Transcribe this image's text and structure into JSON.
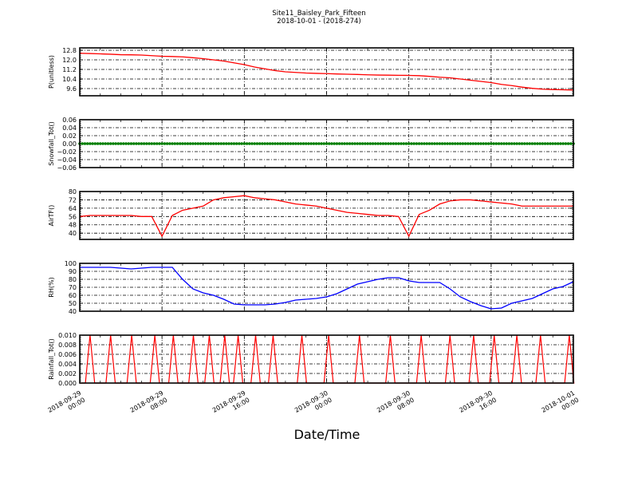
{
  "chart_data": [
    {
      "type": "line",
      "title": "Site11_Baisley_Park_Fifteen",
      "subtitle": "2018-10-01 - (2018-274)",
      "xlabel": "Date/Time",
      "x_start": "2018-09-29 00:00",
      "x_end": "2018-10-01 00:00",
      "x_unit": "hours from 2018-09-29 00:00",
      "xticks": [
        {
          "hour": 0,
          "label": [
            "2018-09-29",
            "00:00"
          ]
        },
        {
          "hour": 8,
          "label": [
            "2018-09-29",
            "08:00"
          ]
        },
        {
          "hour": 16,
          "label": [
            "2018-09-29",
            "16:00"
          ]
        },
        {
          "hour": 24,
          "label": [
            "2018-09-30",
            "00:00"
          ]
        },
        {
          "hour": 32,
          "label": [
            "2018-09-30",
            "08:00"
          ]
        },
        {
          "hour": 40,
          "label": [
            "2018-09-30",
            "16:00"
          ]
        },
        {
          "hour": 48,
          "label": [
            "2018-10-01",
            "00:00"
          ]
        }
      ],
      "grid": true,
      "panels": [
        {
          "ylabel": "P(unitless)",
          "color": "#ff0000",
          "ylim": [
            9.0,
            13.0
          ],
          "yticks": [
            "12.8",
            "12.0",
            "11.2",
            "10.4",
            "9.6"
          ],
          "values": [
            12.55,
            12.53,
            12.5,
            12.47,
            12.43,
            12.42,
            12.4,
            12.35,
            12.3,
            12.28,
            12.25,
            12.18,
            12.1,
            12.0,
            11.9,
            11.75,
            11.6,
            11.4,
            11.25,
            11.1,
            11.0,
            10.95,
            10.9,
            10.87,
            10.85,
            10.82,
            10.8,
            10.78,
            10.75,
            10.73,
            10.72,
            10.71,
            10.7,
            10.68,
            10.62,
            10.55,
            10.5,
            10.4,
            10.3,
            10.2,
            10.1,
            9.95,
            9.85,
            9.72,
            9.62,
            9.55,
            9.52,
            9.5,
            9.48
          ]
        },
        {
          "ylabel": "Snowfall_Tot()",
          "color": "#007f00",
          "marker": "dot",
          "ylim": [
            -0.06,
            0.06
          ],
          "yticks": [
            "0.06",
            "0.04",
            "0.02",
            "0.00",
            "−0.02",
            "−0.04",
            "−0.06"
          ],
          "constant_value": 0.0
        },
        {
          "ylabel": "AirTF()",
          "color": "#ff0000",
          "ylim": [
            34,
            80
          ],
          "yticks": [
            "80",
            "72",
            "64",
            "56",
            "48",
            "40"
          ],
          "values": [
            56,
            57,
            57,
            57,
            57,
            57,
            56,
            56,
            37,
            57,
            62,
            64,
            66,
            72,
            74,
            75,
            76,
            74,
            73,
            72,
            70,
            68,
            67,
            66,
            64,
            62,
            60,
            59,
            58,
            57,
            57,
            56,
            37,
            58,
            62,
            68,
            71,
            72,
            72,
            71,
            70,
            69,
            68,
            66,
            66,
            66,
            66,
            66,
            66
          ]
        },
        {
          "ylabel": "RH(%)",
          "color": "#0000ff",
          "ylim": [
            40,
            100
          ],
          "yticks": [
            "100",
            "90",
            "80",
            "70",
            "60",
            "50",
            "40"
          ],
          "values": [
            95,
            95,
            95,
            95,
            94,
            93,
            94,
            95,
            95,
            95,
            80,
            68,
            63,
            60,
            55,
            49,
            48,
            48,
            48,
            49,
            51,
            54,
            55,
            56,
            58,
            62,
            68,
            74,
            77,
            80,
            82,
            82,
            78,
            76,
            76,
            76,
            68,
            58,
            52,
            47,
            43,
            44,
            50,
            53,
            56,
            62,
            68,
            71,
            77
          ]
        },
        {
          "ylabel": "Rainfall_Tot()",
          "color": "#ff0000",
          "ylim": [
            0,
            0.01
          ],
          "yticks": [
            "0.010",
            "0.008",
            "0.006",
            "0.004",
            "0.002",
            "0.000"
          ],
          "spike_value": 0.01,
          "spike_hours": [
            1.0,
            3.0,
            5.05,
            7.3,
            9.1,
            11.05,
            12.6,
            14.1,
            15.4,
            17.1,
            18.8,
            21.6,
            24.2,
            27.2,
            30.2,
            33.2,
            36.0,
            38.3,
            40.3,
            42.5,
            44.8,
            47.6
          ]
        }
      ]
    }
  ]
}
